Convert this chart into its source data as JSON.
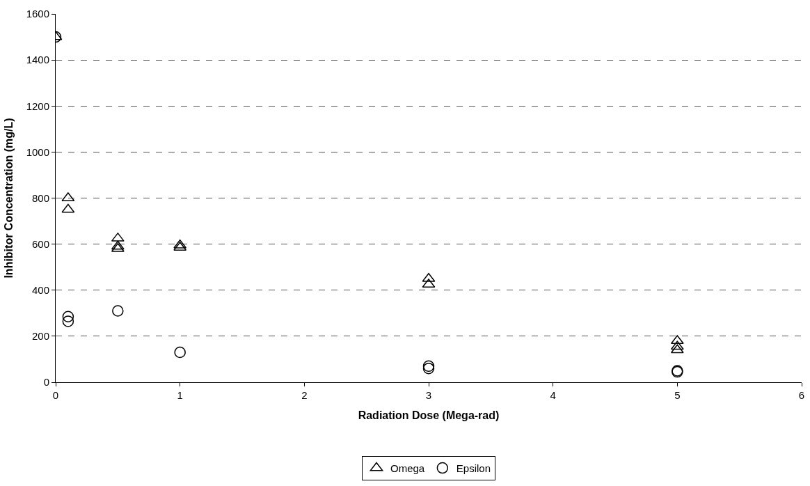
{
  "chart_data": {
    "type": "scatter",
    "xlabel": "Radiation Dose (Mega-rad)",
    "ylabel": "Inhibitor Concentration (mg/L)",
    "xlim": [
      0,
      6
    ],
    "xticks": [
      0,
      1,
      2,
      3,
      4,
      5,
      6
    ],
    "ylim": [
      0,
      1600
    ],
    "yticks": [
      0,
      200,
      400,
      600,
      800,
      1000,
      1200,
      1400,
      1600
    ],
    "grid": "y",
    "legend": "bottom",
    "series": [
      {
        "name": "Omega",
        "color": "#000000",
        "marker": "triangle",
        "x": [
          0,
          0.1,
          0.1,
          0.5,
          0.5,
          0.5,
          1,
          1,
          3,
          3,
          5,
          5,
          5
        ],
        "values": [
          1500,
          800,
          750,
          625,
          590,
          580,
          595,
          585,
          450,
          425,
          180,
          155,
          140
        ]
      },
      {
        "name": "Epsilon",
        "color": "#000000",
        "marker": "circle",
        "x": [
          0,
          0.1,
          0.1,
          0.5,
          1,
          3,
          3,
          5,
          5
        ],
        "values": [
          1500,
          285,
          265,
          310,
          130,
          70,
          60,
          50,
          45
        ]
      }
    ]
  }
}
